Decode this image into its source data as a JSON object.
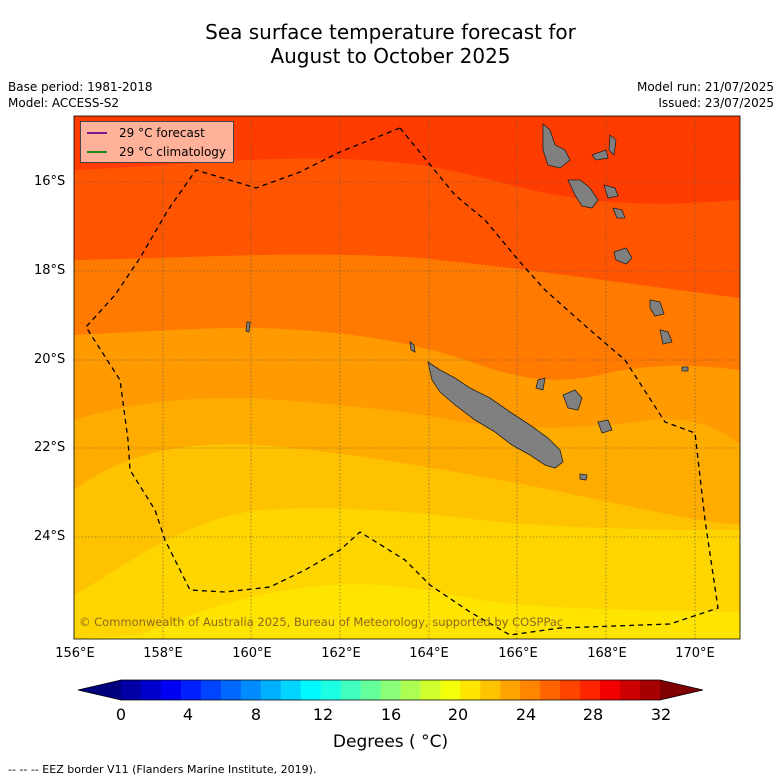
{
  "title": {
    "line1": "Sea surface temperature forecast for",
    "line2": "August to October 2025"
  },
  "meta_left": {
    "base_period": "Base period: 1981-2018",
    "model": "Model: ACCESS-S2"
  },
  "meta_right": {
    "model_run": "Model run: 21/07/2025",
    "issued": "Issued: 23/07/2025"
  },
  "legend": {
    "forecast_label": "29 °C  forecast",
    "climatology_label": "29 °C  climatology",
    "forecast_color": "#7a1a8c",
    "climatology_color": "#1a8a1a"
  },
  "latitude_labels": [
    "16°S",
    "18°S",
    "20°S",
    "22°S",
    "24°S"
  ],
  "longitude_labels": [
    "156°E",
    "158°E",
    "160°E",
    "162°E",
    "164°E",
    "166°E",
    "168°E",
    "170°E"
  ],
  "copyright": "© Commonwealth of Australia 2025, Bureau of Meteorology, supported by COSPPac",
  "colorbar": {
    "tick_labels": [
      "0",
      "4",
      "8",
      "12",
      "16",
      "20",
      "24",
      "28",
      "32"
    ],
    "title": "Degrees ( °C)",
    "colors": [
      "#00007f",
      "#0000a6",
      "#0000cc",
      "#0000f2",
      "#0020ff",
      "#0044ff",
      "#0068ff",
      "#008cff",
      "#00b0ff",
      "#00d4ff",
      "#00f8ff",
      "#1cffe2",
      "#40ffbe",
      "#64ff9a",
      "#88ff76",
      "#acff52",
      "#d0ff2e",
      "#f4ff0a",
      "#ffe500",
      "#ffc400",
      "#ffa400",
      "#ff8400",
      "#ff6400",
      "#ff4400",
      "#ff2400",
      "#f20000",
      "#cc0000",
      "#a60000",
      "#7f0000"
    ]
  },
  "footer": "--  --  -- EEZ border V11 (Flanders Marine Institute, 2019).",
  "map": {
    "band_colors": [
      "#ff3c00",
      "#ff5500",
      "#ff7a00",
      "#ff9a00",
      "#ffac00",
      "#ffc200",
      "#ffd500",
      "#ffe400"
    ],
    "land_color": "#808080"
  }
}
